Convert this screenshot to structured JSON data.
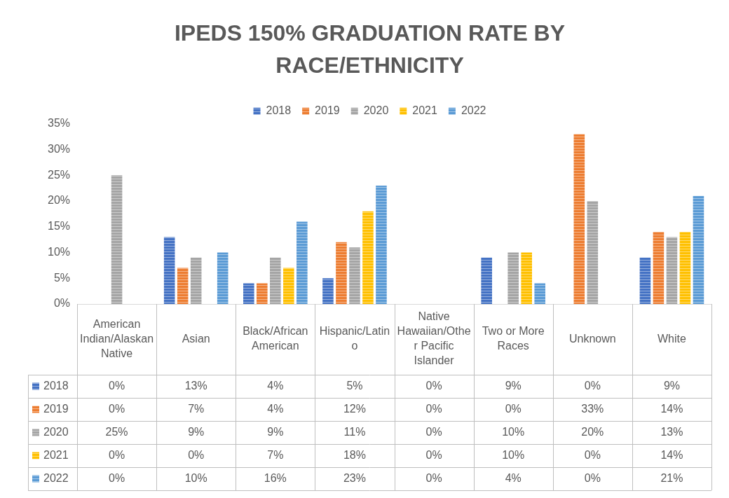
{
  "chart_data": {
    "type": "bar",
    "title": "IPEDS 150% GRADUATION RATE BY RACE/ETHNICITY",
    "categories": [
      "American Indian/Alaskan Native",
      "Asian",
      "Black/African American",
      "Hispanic/Latino",
      "Native Hawaiian/Other Pacific Islander",
      "Two or More Races",
      "Unknown",
      "White"
    ],
    "series": [
      {
        "name": "2018",
        "color": "#4472c4",
        "values": [
          0,
          13,
          4,
          5,
          0,
          9,
          0,
          9
        ],
        "value_labels": [
          "0%",
          "13%",
          "4%",
          "5%",
          "0%",
          "9%",
          "0%",
          "9%"
        ]
      },
      {
        "name": "2019",
        "color": "#ed7d31",
        "values": [
          0,
          7,
          4,
          12,
          0,
          0,
          33,
          14
        ],
        "value_labels": [
          "0%",
          "7%",
          "4%",
          "12%",
          "0%",
          "0%",
          "33%",
          "14%"
        ]
      },
      {
        "name": "2020",
        "color": "#a5a5a5",
        "values": [
          25,
          9,
          9,
          11,
          0,
          10,
          20,
          13
        ],
        "value_labels": [
          "25%",
          "9%",
          "9%",
          "11%",
          "0%",
          "10%",
          "20%",
          "13%"
        ]
      },
      {
        "name": "2021",
        "color": "#ffc000",
        "values": [
          0,
          0,
          7,
          18,
          0,
          10,
          0,
          14
        ],
        "value_labels": [
          "0%",
          "0%",
          "7%",
          "18%",
          "0%",
          "10%",
          "0%",
          "14%"
        ]
      },
      {
        "name": "2022",
        "color": "#5b9bd5",
        "values": [
          0,
          10,
          16,
          23,
          0,
          4,
          0,
          21
        ],
        "value_labels": [
          "0%",
          "10%",
          "16%",
          "23%",
          "0%",
          "4%",
          "0%",
          "21%"
        ]
      }
    ],
    "ylim": [
      0,
      35
    ],
    "yticks": [
      {
        "value": 0,
        "label": "0%"
      },
      {
        "value": 5,
        "label": "5%"
      },
      {
        "value": 10,
        "label": "10%"
      },
      {
        "value": 15,
        "label": "15%"
      },
      {
        "value": 20,
        "label": "20%"
      },
      {
        "value": 25,
        "label": "25%"
      },
      {
        "value": 30,
        "label": "30%"
      },
      {
        "value": 35,
        "label": "35%"
      }
    ],
    "grid": false,
    "legend": "top"
  }
}
